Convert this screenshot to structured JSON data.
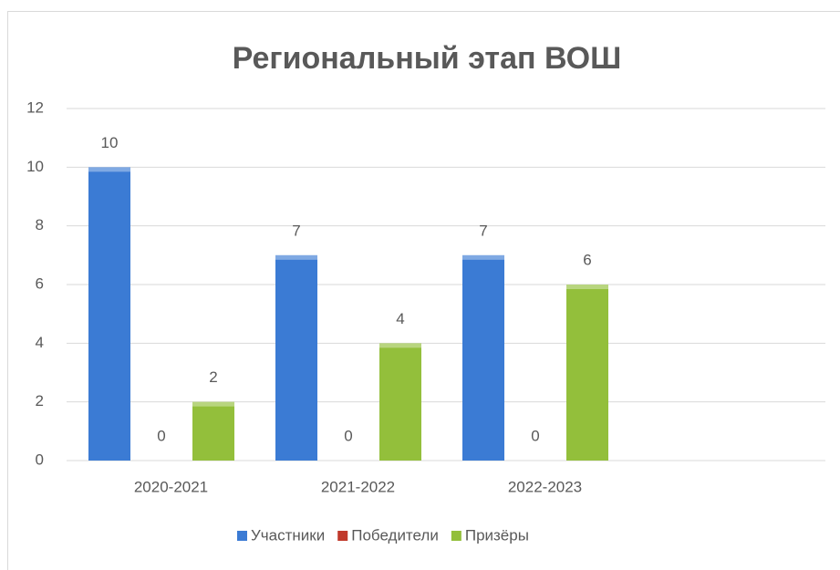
{
  "chart_data": {
    "type": "bar",
    "title": "Региональный этап ВОШ",
    "categories": [
      "2020-2021",
      "2021-2022",
      "2022-2023",
      null
    ],
    "series": [
      {
        "name": "Участники",
        "color": "#3b7bd4",
        "values": [
          10,
          7,
          7,
          null
        ]
      },
      {
        "name": "Победители",
        "color": "#c0392b",
        "values": [
          0,
          0,
          0,
          null
        ]
      },
      {
        "name": "Призёры",
        "color": "#93bf3b",
        "values": [
          2,
          4,
          6,
          null
        ]
      }
    ],
    "ylim": [
      0,
      12
    ],
    "yticks": [
      0,
      2,
      4,
      6,
      8,
      10,
      12
    ],
    "grid": true,
    "legend": "bottom"
  }
}
